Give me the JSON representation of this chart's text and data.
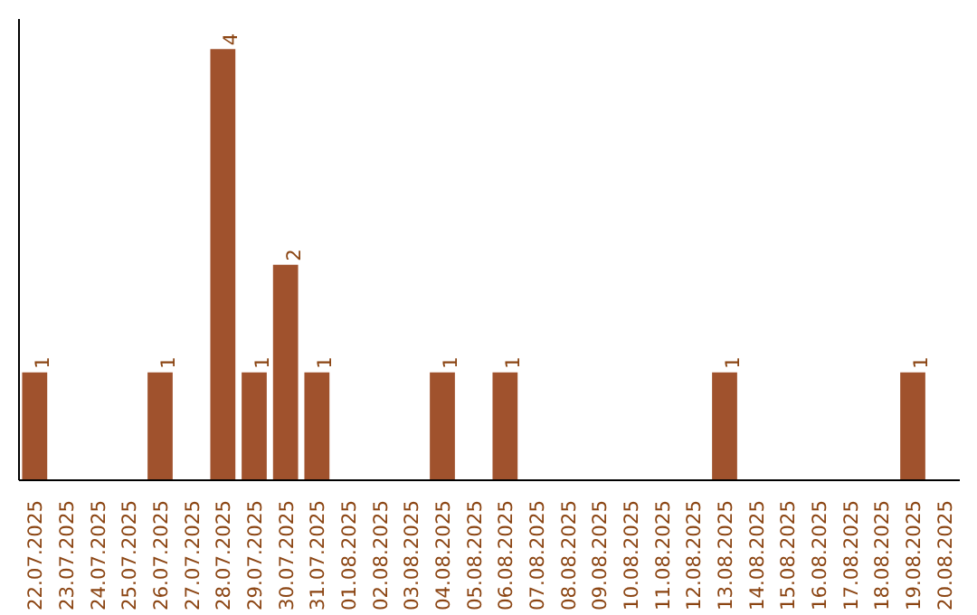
{
  "chart_data": {
    "type": "bar",
    "categories": [
      "22.07.2025",
      "23.07.2025",
      "24.07.2025",
      "25.07.2025",
      "26.07.2025",
      "27.07.2025",
      "28.07.2025",
      "29.07.2025",
      "30.07.2025",
      "31.07.2025",
      "01.08.2025",
      "02.08.2025",
      "03.08.2025",
      "04.08.2025",
      "05.08.2025",
      "06.08.2025",
      "07.08.2025",
      "08.08.2025",
      "09.08.2025",
      "10.08.2025",
      "11.08.2025",
      "12.08.2025",
      "13.08.2025",
      "14.08.2025",
      "15.08.2025",
      "16.08.2025",
      "17.08.2025",
      "18.08.2025",
      "19.08.2025",
      "20.08.2025"
    ],
    "values": [
      1,
      0,
      0,
      0,
      1,
      0,
      4,
      1,
      2,
      1,
      0,
      0,
      0,
      1,
      0,
      1,
      0,
      0,
      0,
      0,
      0,
      0,
      1,
      0,
      0,
      0,
      0,
      0,
      1,
      0
    ],
    "value_labels": [
      "1",
      null,
      null,
      null,
      "1",
      null,
      "4",
      "1",
      "2",
      "1",
      null,
      null,
      null,
      "1",
      null,
      "1",
      null,
      null,
      null,
      null,
      null,
      null,
      "1",
      null,
      null,
      null,
      null,
      null,
      "1",
      null
    ],
    "color": "#a0522d",
    "grid": false
  }
}
